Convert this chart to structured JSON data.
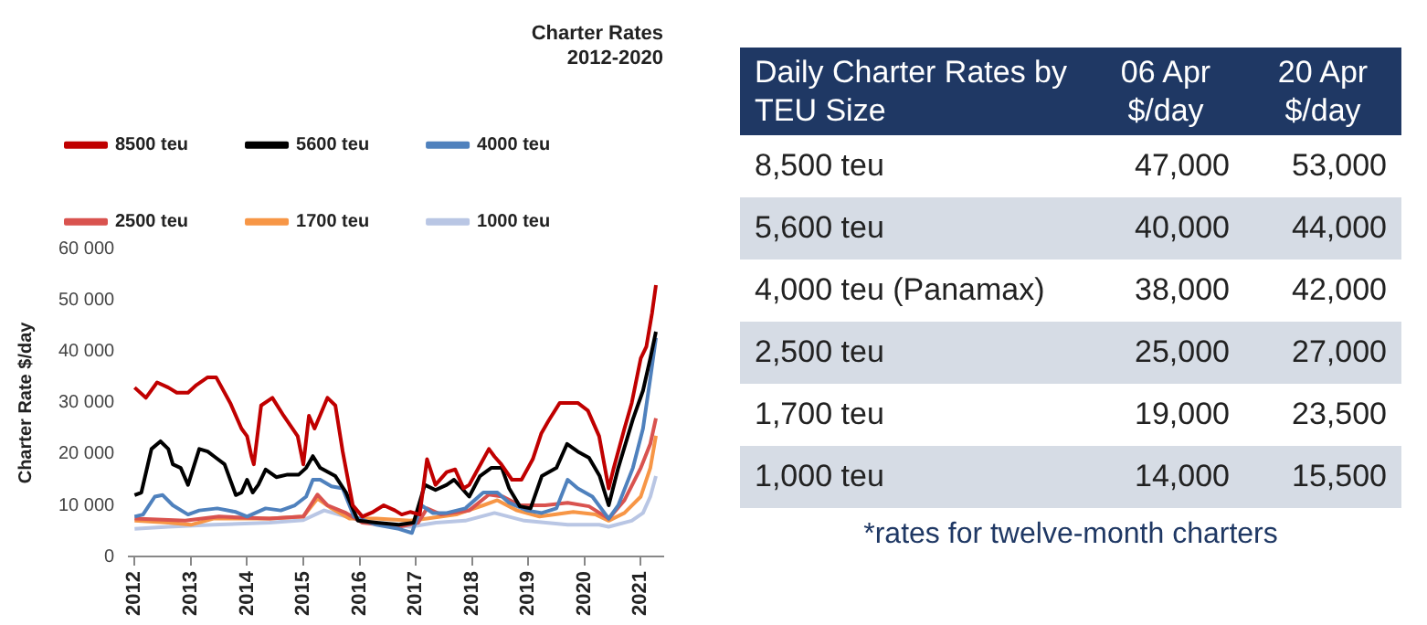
{
  "chart_data": [
    {
      "type": "line",
      "title": "Charter Rates",
      "subtitle": "2012-2020",
      "ylabel": "Charter Rate $/day",
      "xlim": [
        2011.9,
        2021.4
      ],
      "xticks": [
        2012,
        2013,
        2014,
        2015,
        2016,
        2017,
        2018,
        2019,
        2020,
        2021
      ],
      "ylim": [
        0,
        60000
      ],
      "yticks": [
        {
          "value": 0,
          "label": "0"
        },
        {
          "value": 10000,
          "label": "10 000"
        },
        {
          "value": 20000,
          "label": "20 000"
        },
        {
          "value": 30000,
          "label": "30 000"
        },
        {
          "value": 40000,
          "label": "40 000"
        },
        {
          "value": 50000,
          "label": "50 000"
        },
        {
          "value": 60000,
          "label": "60 000"
        }
      ],
      "grid": false,
      "legend": "top",
      "marker": "none",
      "line_style": "solid",
      "series": [
        {
          "name": "8500 teu",
          "color": "#c00000",
          "x": [
            2012,
            2012.2,
            2012.4,
            2012.6,
            2012.75,
            2012.95,
            2013.1,
            2013.3,
            2013.45,
            2013.7,
            2013.9,
            2014,
            2014.08,
            2014.12,
            2014.25,
            2014.45,
            2014.65,
            2014.9,
            2015,
            2015.1,
            2015.2,
            2015.43,
            2015.57,
            2015.7,
            2015.88,
            2016.05,
            2016.24,
            2016.43,
            2016.63,
            2016.75,
            2016.9,
            2017.07,
            2017.2,
            2017.35,
            2017.55,
            2017.7,
            2017.85,
            2017.95,
            2018.15,
            2018.3,
            2018.4,
            2018.52,
            2018.71,
            2018.88,
            2019.08,
            2019.23,
            2019.36,
            2019.56,
            2019.88,
            2020.06,
            2020.26,
            2020.43,
            2020.52,
            2020.71,
            2020.84,
            2021,
            2021.1,
            2021.2,
            2021.27
          ],
          "values": [
            33000,
            31000,
            34000,
            33000,
            32000,
            32000,
            33500,
            35000,
            35000,
            30000,
            25000,
            23500,
            19500,
            18000,
            29500,
            31000,
            27500,
            23500,
            18000,
            27500,
            25000,
            31000,
            29500,
            20500,
            10000,
            7800,
            8700,
            10000,
            9000,
            8200,
            8700,
            8200,
            19000,
            14000,
            16500,
            17000,
            13300,
            14000,
            18000,
            21000,
            19500,
            18000,
            15000,
            15000,
            19000,
            24000,
            26500,
            30000,
            30000,
            28500,
            23500,
            13300,
            17300,
            25000,
            30000,
            38700,
            41000,
            47500,
            53000
          ]
        },
        {
          "name": "5600 teu",
          "color": "#000000",
          "x": [
            2012,
            2012.12,
            2012.3,
            2012.46,
            2012.6,
            2012.68,
            2012.82,
            2012.95,
            2013.15,
            2013.3,
            2013.42,
            2013.6,
            2013.8,
            2013.9,
            2014,
            2014.1,
            2014.2,
            2014.33,
            2014.52,
            2014.72,
            2014.92,
            2015.05,
            2015.17,
            2015.3,
            2015.57,
            2015.76,
            2015.97,
            2016.3,
            2016.7,
            2016.96,
            2017.16,
            2017.35,
            2017.55,
            2017.68,
            2017.82,
            2017.95,
            2018.14,
            2018.34,
            2018.53,
            2018.66,
            2018.85,
            2019.04,
            2019.24,
            2019.5,
            2019.69,
            2019.88,
            2020.08,
            2020.27,
            2020.43,
            2020.6,
            2020.86,
            2021.04,
            2021.17,
            2021.27
          ],
          "values": [
            12000,
            12500,
            21000,
            22500,
            21000,
            18000,
            17300,
            14000,
            21000,
            20500,
            19500,
            18000,
            12000,
            12500,
            15000,
            12500,
            14000,
            17000,
            15500,
            16000,
            16000,
            17300,
            19600,
            17300,
            15700,
            12500,
            7000,
            6600,
            6200,
            6600,
            14000,
            13000,
            14000,
            15000,
            13300,
            11700,
            15700,
            17300,
            17300,
            13300,
            9800,
            9400,
            15700,
            17300,
            22000,
            20500,
            19300,
            15700,
            10000,
            17300,
            26800,
            32400,
            38700,
            43900
          ]
        },
        {
          "name": "4000 teu",
          "color": "#4f81bd",
          "x": [
            2012,
            2012.15,
            2012.36,
            2012.5,
            2012.68,
            2012.95,
            2013.15,
            2013.47,
            2013.8,
            2014,
            2014.33,
            2014.6,
            2014.85,
            2015.05,
            2015.17,
            2015.3,
            2015.5,
            2015.7,
            2015.9,
            2016.3,
            2016.7,
            2016.93,
            2017.1,
            2017.3,
            2017.55,
            2017.88,
            2018.2,
            2018.45,
            2018.66,
            2018.98,
            2019.24,
            2019.5,
            2019.7,
            2019.88,
            2020.14,
            2020.43,
            2020.6,
            2020.86,
            2021.04,
            2021.17,
            2021.27
          ],
          "values": [
            7800,
            8200,
            11700,
            12000,
            10000,
            8200,
            9000,
            9400,
            8700,
            7800,
            9400,
            9000,
            10000,
            11700,
            15000,
            15000,
            13700,
            13300,
            7800,
            6200,
            5400,
            4600,
            10000,
            8500,
            8500,
            9400,
            12500,
            12500,
            10500,
            9000,
            8500,
            9400,
            15000,
            13300,
            11700,
            7400,
            10000,
            17300,
            25000,
            34800,
            42700
          ]
        },
        {
          "name": "2500 teu",
          "color": "#d9534f",
          "x": [
            2012,
            2012.9,
            2013.5,
            2014.4,
            2015,
            2015.25,
            2015.43,
            2015.76,
            2016.05,
            2016.7,
            2017.04,
            2017.2,
            2017.45,
            2017.95,
            2018.3,
            2018.55,
            2018.85,
            2019.3,
            2019.7,
            2020.08,
            2020.43,
            2020.71,
            2021,
            2021.17,
            2021.27
          ],
          "values": [
            7400,
            7000,
            7800,
            7400,
            7800,
            12100,
            10000,
            8500,
            6600,
            5800,
            6600,
            9400,
            8200,
            9000,
            12100,
            11700,
            10000,
            10000,
            10500,
            9800,
            7400,
            11000,
            17300,
            22000,
            27000
          ]
        },
        {
          "name": "1700 teu",
          "color": "#f79646",
          "x": [
            2012,
            2012.6,
            2013,
            2013.4,
            2014.4,
            2015,
            2015.25,
            2015.5,
            2015.82,
            2016.3,
            2016.9,
            2017.2,
            2017.72,
            2018.2,
            2018.45,
            2018.8,
            2019.2,
            2019.8,
            2020.2,
            2020.43,
            2020.71,
            2021,
            2021.17,
            2021.27
          ],
          "values": [
            7000,
            6600,
            6200,
            7400,
            7400,
            7800,
            11300,
            9400,
            7400,
            7400,
            7000,
            7400,
            8200,
            10000,
            11000,
            9000,
            7800,
            8700,
            8200,
            7000,
            8500,
            11700,
            17300,
            23600
          ]
        },
        {
          "name": "1000 teu",
          "color": "#b9c6e4",
          "x": [
            2012,
            2012.6,
            2013.4,
            2014.4,
            2015,
            2015.37,
            2015.76,
            2016.17,
            2016.9,
            2017.36,
            2017.88,
            2018.4,
            2018.93,
            2019.7,
            2020.26,
            2020.43,
            2020.84,
            2021.04,
            2021.17,
            2021.27
          ],
          "values": [
            5400,
            5800,
            6200,
            6600,
            7100,
            9000,
            7800,
            6600,
            5800,
            6600,
            7000,
            8500,
            7000,
            6200,
            6200,
            5800,
            7000,
            8500,
            11700,
            15700
          ]
        }
      ]
    },
    {
      "type": "other",
      "title": "Daily Charter Rates by TEU Size",
      "categories": [
        "8,500 teu",
        "5,600 teu",
        "4,000 teu (Panamax)",
        "2,500 teu",
        "1,700 teu",
        "1,000 teu"
      ],
      "series": [
        {
          "name": "06 Apr $/day",
          "values": [
            47000,
            40000,
            38000,
            25000,
            19000,
            14000
          ],
          "value_labels": [
            "47,000",
            "40,000",
            "38,000",
            "25,000",
            "19,000",
            "14,000"
          ]
        },
        {
          "name": "20 Apr $/day",
          "values": [
            53000,
            44000,
            42000,
            27000,
            23500,
            15500
          ],
          "value_labels": [
            "53,000",
            "44,000",
            "42,000",
            "27,000",
            "23,500",
            "15,500"
          ]
        }
      ],
      "annotations": [
        "*rates for twelve-month charters"
      ]
    }
  ]
}
